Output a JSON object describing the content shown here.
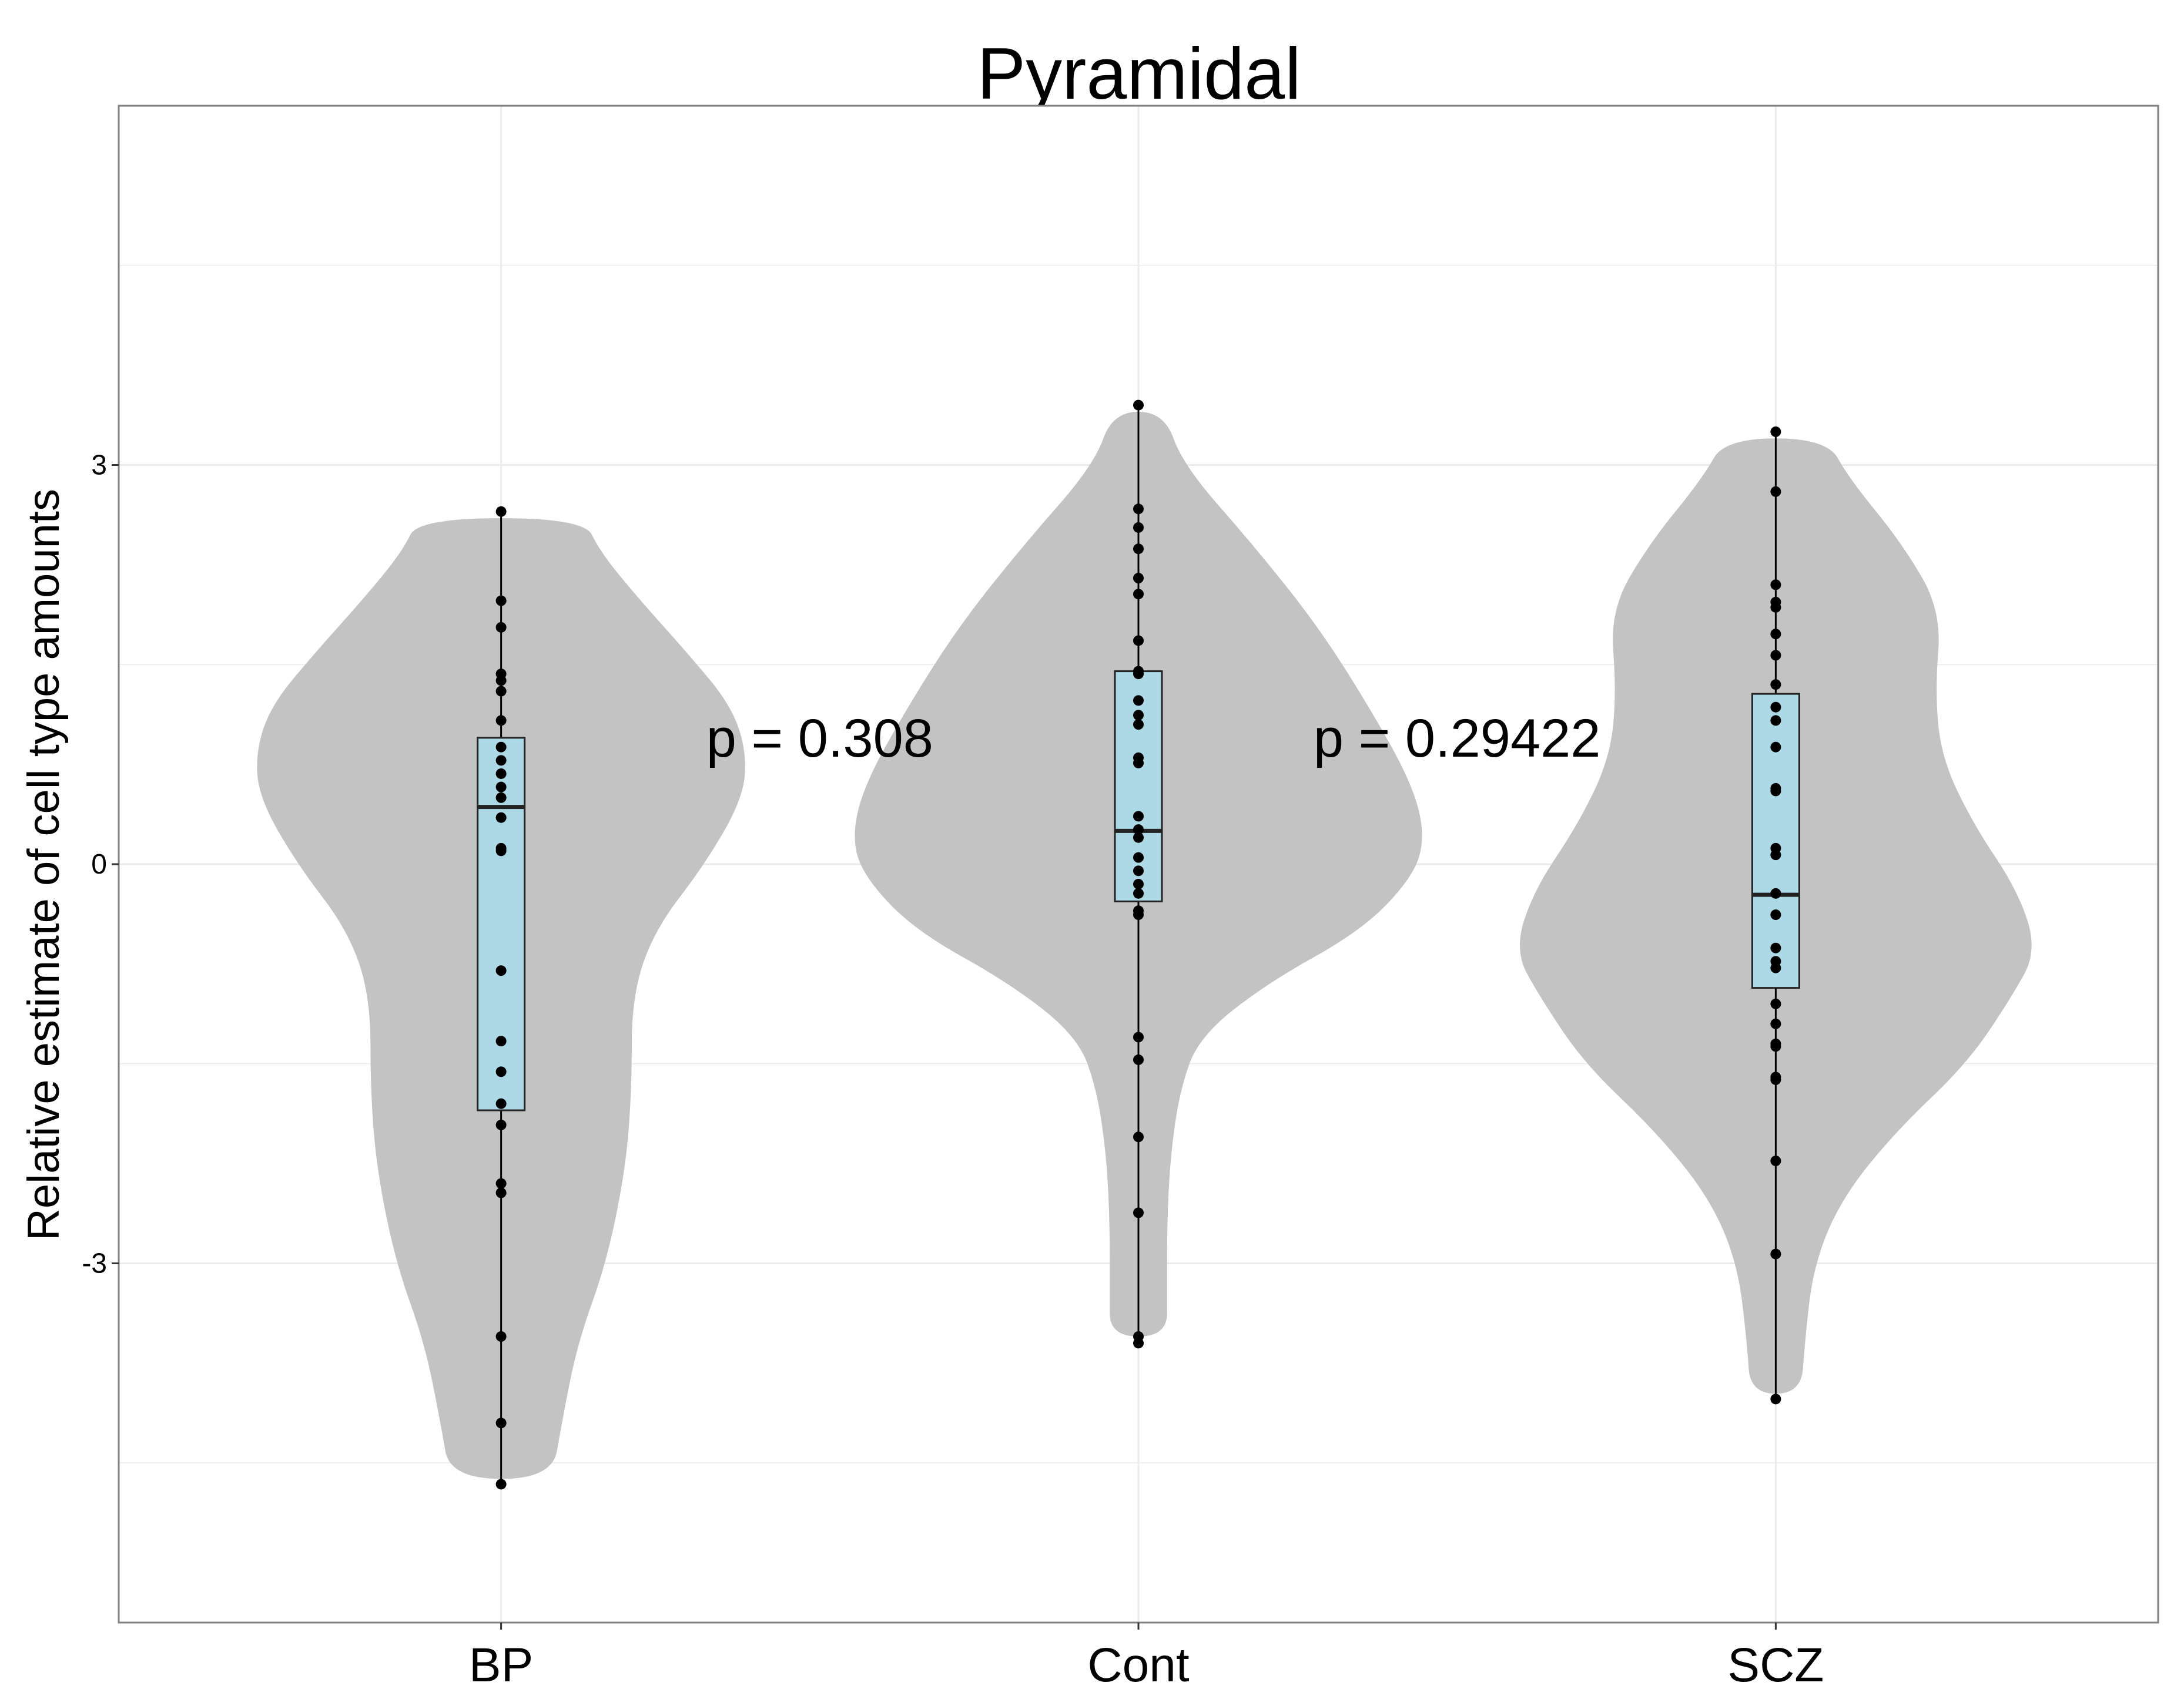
{
  "chart_data": {
    "type": "violin",
    "title": "Pyramidal",
    "xlabel": "",
    "ylabel": "Relative estimate of cell type amounts",
    "ylim": [
      -5.7,
      5.7
    ],
    "yticks": [
      -3,
      0,
      3
    ],
    "ytick_labels": [
      "-3",
      "0",
      "3"
    ],
    "categories": [
      "BP",
      "Cont",
      "SCZ"
    ],
    "grid": true,
    "colors": {
      "violin_fill": "#c3c3c3",
      "box_fill": "#add8e6",
      "point": "#000000",
      "grid": "#ebebeb",
      "panel_border": "#7f7f7f"
    },
    "groups": [
      {
        "name": "BP",
        "box": {
          "min": -4.65,
          "q1": -1.85,
          "median": 0.43,
          "q3": 0.95,
          "max": 2.63
        },
        "violin": [
          {
            "y": -4.62,
            "w": 0.08
          },
          {
            "y": -4.2,
            "w": 0.095
          },
          {
            "y": -3.6,
            "w": 0.12
          },
          {
            "y": -3.0,
            "w": 0.165
          },
          {
            "y": -2.3,
            "w": 0.195
          },
          {
            "y": -1.7,
            "w": 0.205
          },
          {
            "y": -1.0,
            "w": 0.205
          },
          {
            "y": -0.5,
            "w": 0.24
          },
          {
            "y": 0.0,
            "w": 0.32
          },
          {
            "y": 0.5,
            "w": 0.38
          },
          {
            "y": 0.85,
            "w": 0.385
          },
          {
            "y": 1.2,
            "w": 0.36
          },
          {
            "y": 1.6,
            "w": 0.29
          },
          {
            "y": 2.0,
            "w": 0.215
          },
          {
            "y": 2.35,
            "w": 0.155
          },
          {
            "y": 2.6,
            "w": 0.13
          }
        ],
        "points": [
          2.65,
          1.98,
          1.78,
          1.43,
          1.38,
          1.3,
          1.08,
          0.88,
          0.78,
          0.68,
          0.58,
          0.5,
          0.35,
          0.12,
          0.1,
          -0.8,
          -1.33,
          -1.56,
          -1.8,
          -1.96,
          -2.4,
          -2.47,
          -3.55,
          -4.2,
          -4.66
        ]
      },
      {
        "name": "Cont",
        "box": {
          "min": -3.6,
          "q1": -0.28,
          "median": 0.25,
          "q3": 1.45,
          "max": 3.45
        },
        "violin": [
          {
            "y": -3.55,
            "w": 0.045
          },
          {
            "y": -3.2,
            "w": 0.045
          },
          {
            "y": -2.7,
            "w": 0.045
          },
          {
            "y": -2.2,
            "w": 0.05
          },
          {
            "y": -1.7,
            "w": 0.065
          },
          {
            "y": -1.3,
            "w": 0.095
          },
          {
            "y": -0.9,
            "w": 0.2
          },
          {
            "y": -0.5,
            "w": 0.35
          },
          {
            "y": -0.1,
            "w": 0.43
          },
          {
            "y": 0.2,
            "w": 0.45
          },
          {
            "y": 0.6,
            "w": 0.43
          },
          {
            "y": 1.2,
            "w": 0.36
          },
          {
            "y": 1.8,
            "w": 0.28
          },
          {
            "y": 2.4,
            "w": 0.18
          },
          {
            "y": 3.0,
            "w": 0.07
          },
          {
            "y": 3.4,
            "w": 0.04
          }
        ],
        "points": [
          3.45,
          2.67,
          2.53,
          2.37,
          2.15,
          2.03,
          1.68,
          1.45,
          1.43,
          1.23,
          1.12,
          1.05,
          0.8,
          0.76,
          0.36,
          0.26,
          0.2,
          0.05,
          -0.05,
          -0.15,
          -0.22,
          -0.35,
          -0.38,
          -1.3,
          -1.47,
          -2.05,
          -2.62,
          -3.55,
          -3.6
        ]
      },
      {
        "name": "SCZ",
        "box": {
          "min": -4.0,
          "q1": -0.93,
          "median": -0.23,
          "q3": 1.28,
          "max": 3.25
        },
        "violin": [
          {
            "y": -3.98,
            "w": 0.04
          },
          {
            "y": -3.6,
            "w": 0.045
          },
          {
            "y": -3.0,
            "w": 0.06
          },
          {
            "y": -2.5,
            "w": 0.105
          },
          {
            "y": -2.0,
            "w": 0.19
          },
          {
            "y": -1.5,
            "w": 0.3
          },
          {
            "y": -1.0,
            "w": 0.37
          },
          {
            "y": -0.65,
            "w": 0.41
          },
          {
            "y": -0.2,
            "w": 0.38
          },
          {
            "y": 0.3,
            "w": 0.31
          },
          {
            "y": 0.8,
            "w": 0.26
          },
          {
            "y": 1.3,
            "w": 0.25
          },
          {
            "y": 1.9,
            "w": 0.26
          },
          {
            "y": 2.4,
            "w": 0.2
          },
          {
            "y": 2.9,
            "w": 0.115
          },
          {
            "y": 3.2,
            "w": 0.08
          }
        ],
        "points": [
          3.25,
          2.8,
          2.1,
          1.97,
          1.93,
          1.73,
          1.57,
          1.35,
          1.18,
          1.08,
          0.88,
          0.57,
          0.55,
          0.12,
          0.07,
          -0.22,
          -0.38,
          -0.63,
          -0.73,
          -0.78,
          -1.05,
          -1.2,
          -1.35,
          -1.37,
          -1.6,
          -1.62,
          -2.23,
          -2.93,
          -4.02
        ]
      }
    ],
    "annotations": [
      {
        "text": "p = 0.308",
        "x_between": [
          "BP",
          "Cont"
        ],
        "y": 0.95
      },
      {
        "text": "p = 0.29422",
        "x_between": [
          "Cont",
          "SCZ"
        ],
        "y": 0.95
      }
    ]
  }
}
